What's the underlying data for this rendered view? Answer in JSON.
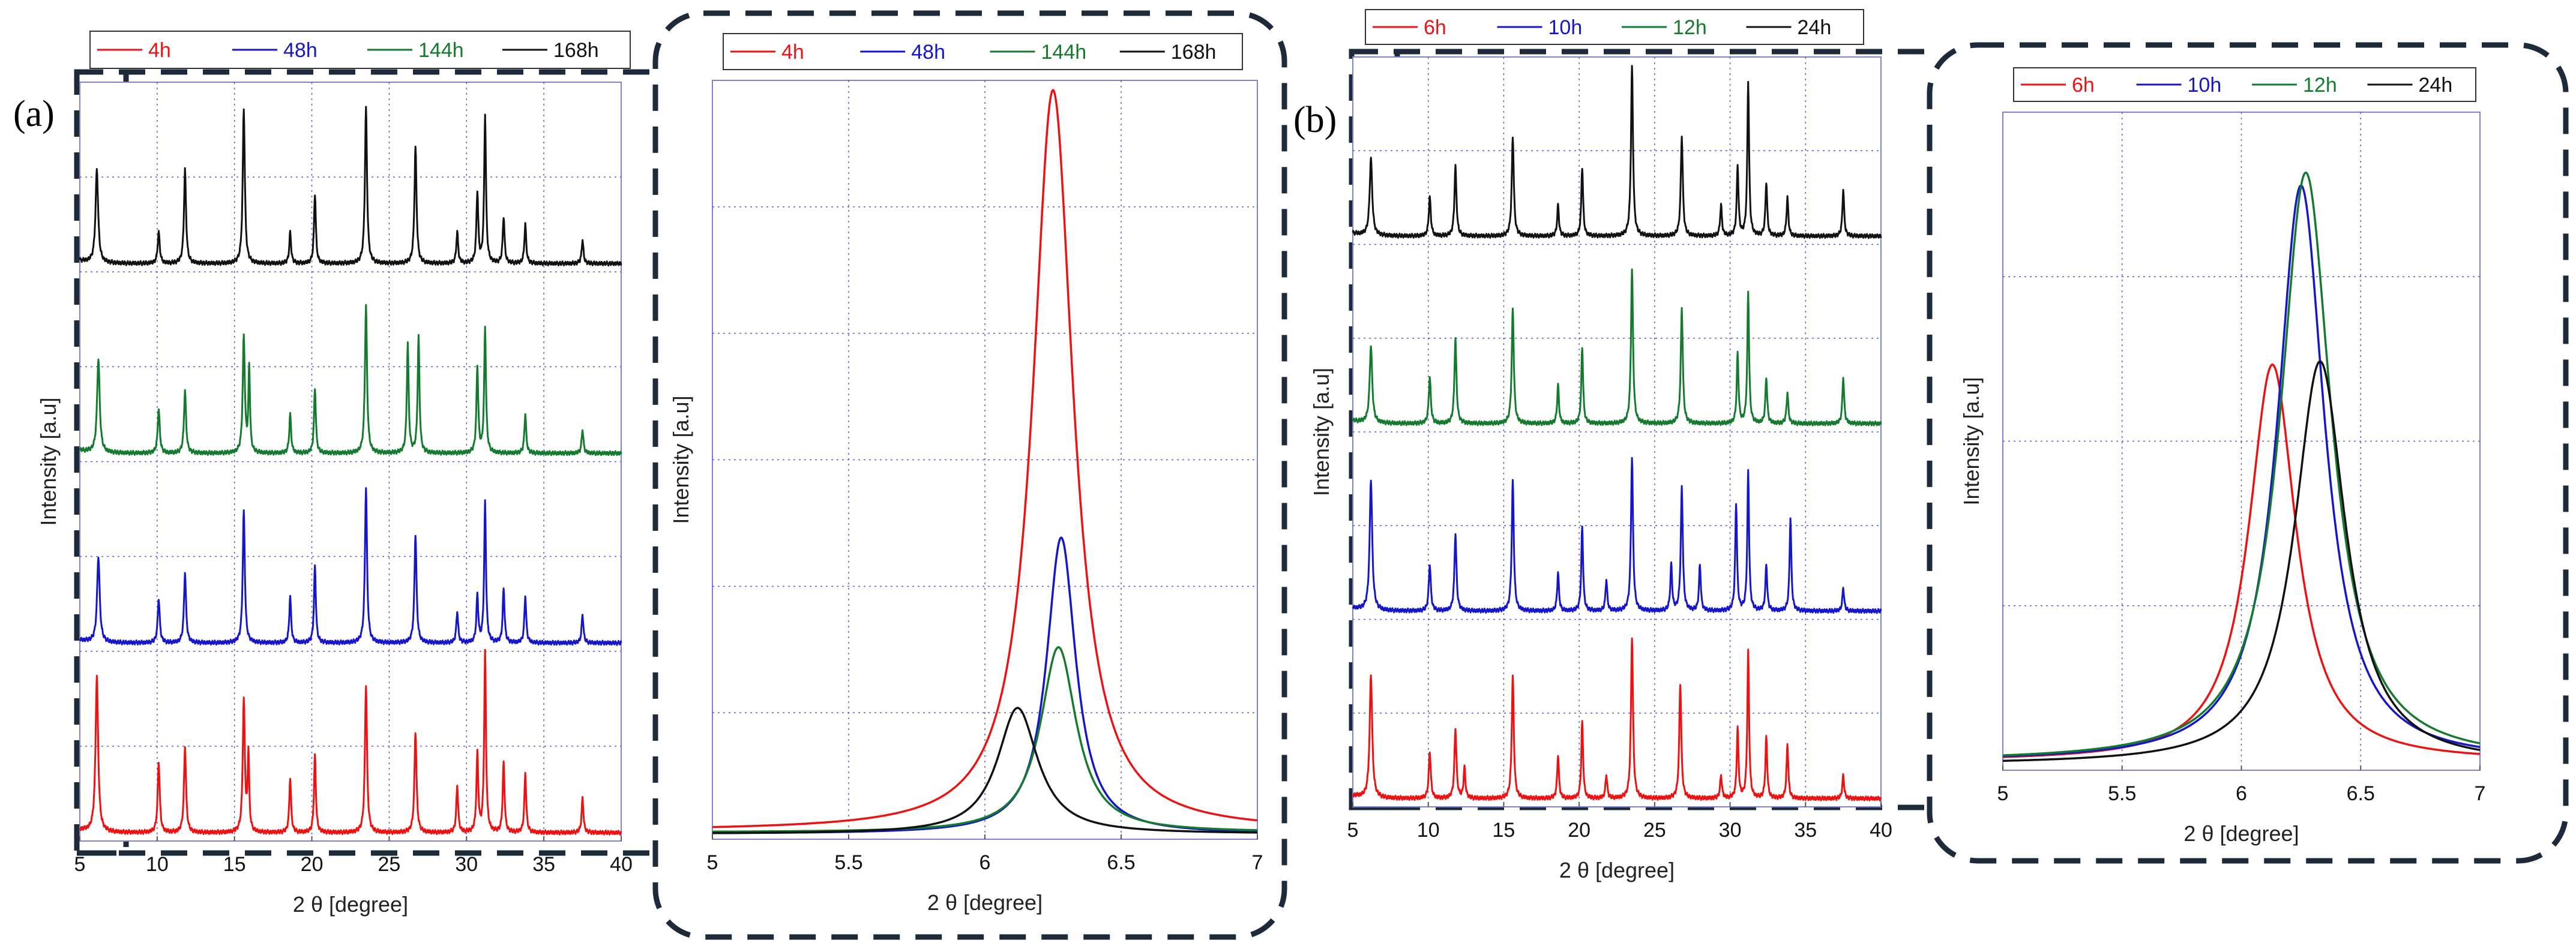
{
  "figure": {
    "panel_a_label": "(a)",
    "panel_b_label": "(b)"
  },
  "colors": {
    "red": "#ee1111",
    "blue": "#1515cc",
    "green": "#137a2e",
    "black": "#111111",
    "grid": "#5a5ad0",
    "frame": "#8080d0",
    "dash": "#1c2a3a"
  },
  "chart_data": [
    {
      "id": "a_full",
      "type": "line",
      "title": "",
      "xlabel": "2 θ [degree]",
      "ylabel": "Intensity [a.u]",
      "xlim": [
        5,
        40
      ],
      "xticks": [
        5,
        10,
        15,
        20,
        25,
        30,
        35,
        40
      ],
      "stacked": true,
      "legend": [
        "4h",
        "48h",
        "144h",
        "168h"
      ],
      "series": [
        {
          "name": "4h",
          "color": "red",
          "offset": 0,
          "peaks": [
            [
              6.1,
              1.0,
              0.1
            ],
            [
              10.1,
              0.45,
              0.08
            ],
            [
              11.8,
              0.55,
              0.08
            ],
            [
              15.6,
              0.85,
              0.08
            ],
            [
              15.9,
              0.5,
              0.06
            ],
            [
              18.6,
              0.35,
              0.07
            ],
            [
              20.2,
              0.5,
              0.07
            ],
            [
              23.5,
              0.95,
              0.08
            ],
            [
              26.7,
              0.65,
              0.08
            ],
            [
              29.4,
              0.3,
              0.07
            ],
            [
              30.7,
              0.5,
              0.07
            ],
            [
              31.2,
              1.15,
              0.07
            ],
            [
              32.4,
              0.45,
              0.07
            ],
            [
              33.8,
              0.38,
              0.07
            ],
            [
              37.5,
              0.22,
              0.07
            ]
          ]
        },
        {
          "name": "48h",
          "color": "blue",
          "offset": 1,
          "peaks": [
            [
              6.2,
              0.55,
              0.1
            ],
            [
              10.1,
              0.28,
              0.08
            ],
            [
              11.8,
              0.45,
              0.08
            ],
            [
              15.6,
              0.85,
              0.08
            ],
            [
              18.6,
              0.3,
              0.07
            ],
            [
              20.2,
              0.5,
              0.07
            ],
            [
              23.5,
              1.0,
              0.08
            ],
            [
              26.7,
              0.7,
              0.08
            ],
            [
              29.4,
              0.2,
              0.07
            ],
            [
              30.7,
              0.3,
              0.07
            ],
            [
              31.2,
              0.9,
              0.07
            ],
            [
              32.4,
              0.35,
              0.07
            ],
            [
              33.8,
              0.3,
              0.07
            ],
            [
              37.5,
              0.18,
              0.07
            ]
          ]
        },
        {
          "name": "144h",
          "color": "green",
          "offset": 2,
          "peaks": [
            [
              6.2,
              0.6,
              0.1
            ],
            [
              10.1,
              0.28,
              0.08
            ],
            [
              11.8,
              0.4,
              0.08
            ],
            [
              15.6,
              0.75,
              0.08
            ],
            [
              15.95,
              0.55,
              0.06
            ],
            [
              18.6,
              0.25,
              0.07
            ],
            [
              20.2,
              0.42,
              0.07
            ],
            [
              23.5,
              0.95,
              0.08
            ],
            [
              26.2,
              0.7,
              0.07
            ],
            [
              26.9,
              0.75,
              0.07
            ],
            [
              30.7,
              0.55,
              0.07
            ],
            [
              31.2,
              0.8,
              0.07
            ],
            [
              33.8,
              0.25,
              0.07
            ],
            [
              37.5,
              0.15,
              0.07
            ]
          ]
        },
        {
          "name": "168h",
          "color": "black",
          "offset": 3,
          "peaks": [
            [
              6.1,
              0.6,
              0.1
            ],
            [
              10.1,
              0.2,
              0.08
            ],
            [
              11.8,
              0.6,
              0.08
            ],
            [
              15.6,
              1.0,
              0.08
            ],
            [
              18.6,
              0.2,
              0.07
            ],
            [
              20.2,
              0.45,
              0.07
            ],
            [
              23.5,
              1.0,
              0.08
            ],
            [
              26.7,
              0.75,
              0.08
            ],
            [
              29.4,
              0.2,
              0.07
            ],
            [
              30.7,
              0.45,
              0.07
            ],
            [
              31.2,
              0.95,
              0.07
            ],
            [
              32.4,
              0.3,
              0.07
            ],
            [
              33.8,
              0.25,
              0.07
            ],
            [
              37.5,
              0.15,
              0.07
            ]
          ]
        }
      ]
    },
    {
      "id": "a_zoom",
      "type": "line",
      "title": "",
      "xlabel": "2 θ [degree]",
      "ylabel": "Intensity [a.u]",
      "xlim": [
        5,
        7
      ],
      "xticks": [
        5,
        5.5,
        6,
        6.5,
        7
      ],
      "xtick_labels": [
        "5",
        "5.5",
        "6",
        "6.5",
        "7"
      ],
      "legend": [
        "4h",
        "48h",
        "144h",
        "168h"
      ],
      "series": [
        {
          "name": "4h",
          "color": "red",
          "peaks": [
            [
              6.25,
              1.0,
              0.09
            ]
          ],
          "base": 0.008
        },
        {
          "name": "48h",
          "color": "blue",
          "peaks": [
            [
              6.28,
              0.4,
              0.065
            ]
          ],
          "base": 0.004
        },
        {
          "name": "144h",
          "color": "green",
          "peaks": [
            [
              6.27,
              0.25,
              0.08
            ]
          ],
          "base": 0.006
        },
        {
          "name": "168h",
          "color": "black",
          "peaks": [
            [
              6.12,
              0.17,
              0.09
            ]
          ],
          "base": 0.004
        }
      ]
    },
    {
      "id": "b_full",
      "type": "line",
      "title": "",
      "xlabel": "2 θ [degree]",
      "ylabel": "Intensity [a.u]",
      "xlim": [
        5,
        40
      ],
      "xticks": [
        5,
        10,
        15,
        20,
        25,
        30,
        35,
        40
      ],
      "stacked": true,
      "legend": [
        "6h",
        "10h",
        "12h",
        "24h"
      ],
      "series": [
        {
          "name": "6h",
          "color": "red",
          "offset": 0,
          "peaks": [
            [
              6.2,
              0.8,
              0.1
            ],
            [
              10.1,
              0.3,
              0.08
            ],
            [
              11.8,
              0.45,
              0.08
            ],
            [
              12.4,
              0.2,
              0.07
            ],
            [
              15.6,
              0.8,
              0.08
            ],
            [
              18.6,
              0.28,
              0.07
            ],
            [
              20.2,
              0.5,
              0.07
            ],
            [
              21.8,
              0.15,
              0.07
            ],
            [
              23.5,
              1.05,
              0.08
            ],
            [
              26.7,
              0.75,
              0.08
            ],
            [
              29.4,
              0.15,
              0.07
            ],
            [
              30.5,
              0.45,
              0.07
            ],
            [
              31.2,
              0.95,
              0.07
            ],
            [
              32.4,
              0.4,
              0.07
            ],
            [
              33.8,
              0.35,
              0.07
            ],
            [
              37.5,
              0.15,
              0.07
            ]
          ]
        },
        {
          "name": "10h",
          "color": "blue",
          "offset": 1,
          "peaks": [
            [
              6.2,
              0.85,
              0.1
            ],
            [
              10.1,
              0.3,
              0.08
            ],
            [
              11.8,
              0.5,
              0.08
            ],
            [
              15.6,
              0.85,
              0.08
            ],
            [
              18.6,
              0.25,
              0.07
            ],
            [
              20.2,
              0.55,
              0.07
            ],
            [
              21.8,
              0.2,
              0.07
            ],
            [
              23.5,
              1.0,
              0.08
            ],
            [
              26.1,
              0.3,
              0.07
            ],
            [
              26.8,
              0.8,
              0.08
            ],
            [
              28.0,
              0.3,
              0.07
            ],
            [
              30.4,
              0.7,
              0.07
            ],
            [
              31.2,
              0.9,
              0.07
            ],
            [
              32.4,
              0.3,
              0.07
            ],
            [
              34.0,
              0.6,
              0.07
            ],
            [
              37.5,
              0.15,
              0.07
            ]
          ]
        },
        {
          "name": "12h",
          "color": "green",
          "offset": 2,
          "peaks": [
            [
              6.2,
              0.5,
              0.1
            ],
            [
              10.1,
              0.3,
              0.08
            ],
            [
              11.8,
              0.55,
              0.08
            ],
            [
              15.6,
              0.75,
              0.08
            ],
            [
              18.6,
              0.25,
              0.07
            ],
            [
              20.2,
              0.5,
              0.07
            ],
            [
              23.5,
              1.0,
              0.08
            ],
            [
              26.8,
              0.75,
              0.08
            ],
            [
              30.5,
              0.45,
              0.07
            ],
            [
              31.2,
              0.85,
              0.07
            ],
            [
              32.4,
              0.3,
              0.07
            ],
            [
              33.8,
              0.2,
              0.07
            ],
            [
              37.5,
              0.3,
              0.07
            ]
          ]
        },
        {
          "name": "24h",
          "color": "black",
          "offset": 3,
          "peaks": [
            [
              6.2,
              0.5,
              0.1
            ],
            [
              10.1,
              0.25,
              0.08
            ],
            [
              11.8,
              0.45,
              0.08
            ],
            [
              15.6,
              0.65,
              0.08
            ],
            [
              18.6,
              0.2,
              0.07
            ],
            [
              20.2,
              0.45,
              0.07
            ],
            [
              23.5,
              1.1,
              0.08
            ],
            [
              26.8,
              0.65,
              0.08
            ],
            [
              29.4,
              0.2,
              0.07
            ],
            [
              30.5,
              0.45,
              0.07
            ],
            [
              31.2,
              1.0,
              0.07
            ],
            [
              32.4,
              0.35,
              0.07
            ],
            [
              33.8,
              0.25,
              0.07
            ],
            [
              37.5,
              0.3,
              0.07
            ]
          ]
        }
      ]
    },
    {
      "id": "b_zoom",
      "type": "line",
      "title": "",
      "xlabel": "2 θ [degree]",
      "ylabel": "Intensity [a.u]",
      "xlim": [
        5,
        7
      ],
      "xticks": [
        5,
        5.5,
        6,
        6.5,
        7
      ],
      "xtick_labels": [
        "5",
        "5.5",
        "6",
        "6.5",
        "7"
      ],
      "legend": [
        "6h",
        "10h",
        "12h",
        "24h"
      ],
      "series": [
        {
          "name": "6h",
          "color": "red",
          "peaks": [
            [
              6.13,
              0.62,
              0.12
            ]
          ],
          "base": 0.01
        },
        {
          "name": "10h",
          "color": "blue",
          "peaks": [
            [
              6.25,
              0.9,
              0.12
            ]
          ],
          "base": 0.01
        },
        {
          "name": "12h",
          "color": "green",
          "peaks": [
            [
              6.27,
              0.92,
              0.13
            ]
          ],
          "base": 0.01
        },
        {
          "name": "24h",
          "color": "black",
          "peaks": [
            [
              6.33,
              0.63,
              0.13
            ]
          ],
          "base": 0.005
        }
      ]
    }
  ]
}
